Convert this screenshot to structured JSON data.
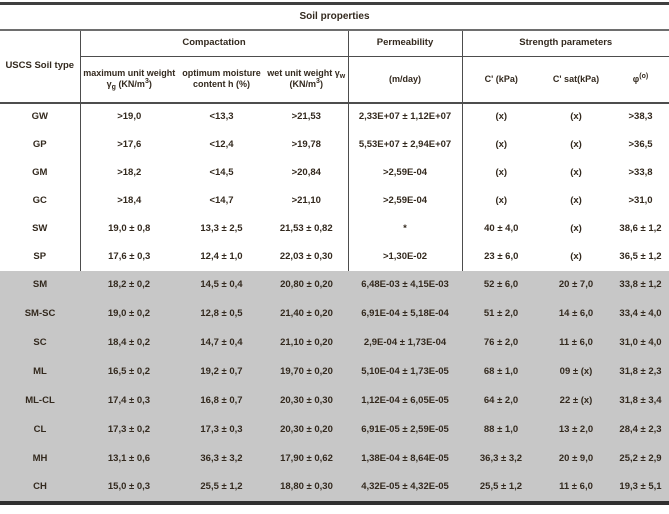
{
  "title": "Soil properties",
  "groups": {
    "compaction": "Compactation",
    "permeability": "Permeability",
    "strength": "Strength parameters"
  },
  "columns": {
    "soil_type": "USCS Soil type",
    "max_unit": {
      "pre": "maximum unit weight γ",
      "sub": "g",
      "mid": " (KN/m",
      "sup": "3",
      "post": ")"
    },
    "moisture": "optimum moisture content h (%)",
    "wet_unit": {
      "pre": "wet unit weight γ",
      "sub": "w",
      "mid": " (KN/m",
      "sup": "3",
      "post": ")"
    },
    "perm_unit": "(m/day)",
    "c": "C' (kPa)",
    "c_sat": "C' sat(kPa)",
    "phi": {
      "pre": "φ",
      "sup": "(o)"
    }
  },
  "colors": {
    "shaded_row_bg": "#c7c7c7",
    "rule": "#4d4d4d",
    "text": "#33291e"
  },
  "chart_data": {
    "type": "table",
    "title": "Soil properties",
    "column_groups": [
      "Compactation",
      "Permeability",
      "Strength parameters"
    ],
    "columns": [
      "USCS Soil type",
      "maximum unit weight γg (KN/m3)",
      "optimum moisture content h (%)",
      "wet unit weight γw (KN/m3)",
      "Permeability (m/day)",
      "C' (kPa)",
      "C' sat(kPa)",
      "φ (o)"
    ],
    "rows": [
      {
        "type": "GW",
        "max_unit": ">19,0",
        "moisture": "<13,3",
        "wet_unit": ">21,53",
        "permeability": "2,33E+07 ± 1,12E+07",
        "c": "(x)",
        "c_sat": "(x)",
        "phi": ">38,3",
        "shaded": false
      },
      {
        "type": "GP",
        "max_unit": ">17,6",
        "moisture": "<12,4",
        "wet_unit": ">19,78",
        "permeability": "5,53E+07 ± 2,94E+07",
        "c": "(x)",
        "c_sat": "(x)",
        "phi": ">36,5",
        "shaded": false
      },
      {
        "type": "GM",
        "max_unit": ">18,2",
        "moisture": "<14,5",
        "wet_unit": ">20,84",
        "permeability": ">2,59E-04",
        "c": "(x)",
        "c_sat": "(x)",
        "phi": ">33,8",
        "shaded": false
      },
      {
        "type": "GC",
        "max_unit": ">18,4",
        "moisture": "<14,7",
        "wet_unit": ">21,10",
        "permeability": ">2,59E-04",
        "c": "(x)",
        "c_sat": "(x)",
        "phi": ">31,0",
        "shaded": false
      },
      {
        "type": "SW",
        "max_unit": "19,0 ± 0,8",
        "moisture": "13,3 ± 2,5",
        "wet_unit": "21,53 ± 0,82",
        "permeability": "*",
        "c": "40 ± 4,0",
        "c_sat": "(x)",
        "phi": "38,6 ± 1,2",
        "shaded": false
      },
      {
        "type": "SP",
        "max_unit": "17,6 ± 0,3",
        "moisture": "12,4 ± 1,0",
        "wet_unit": "22,03 ± 0,30",
        "permeability": ">1,30E-02",
        "c": "23 ± 6,0",
        "c_sat": "(x)",
        "phi": "36,5 ± 1,2",
        "shaded": false
      },
      {
        "type": "SM",
        "max_unit": "18,2 ± 0,2",
        "moisture": "14,5 ± 0,4",
        "wet_unit": "20,80 ± 0,20",
        "permeability": "6,48E-03 ± 4,15E-03",
        "c": "52 ± 6,0",
        "c_sat": "20 ± 7,0",
        "phi": "33,8 ± 1,2",
        "shaded": true
      },
      {
        "type": "SM-SC",
        "max_unit": "19,0 ± 0,2",
        "moisture": "12,8 ± 0,5",
        "wet_unit": "21,40 ± 0,20",
        "permeability": "6,91E-04 ± 5,18E-04",
        "c": "51 ± 2,0",
        "c_sat": "14 ± 6,0",
        "phi": "33,4 ± 4,0",
        "shaded": true
      },
      {
        "type": "SC",
        "max_unit": "18,4 ± 0,2",
        "moisture": "14,7 ± 0,4",
        "wet_unit": "21,10 ± 0,20",
        "permeability": "2,9E-04 ± 1,73E-04",
        "c": "76 ± 2,0",
        "c_sat": "11 ± 6,0",
        "phi": "31,0 ± 4,0",
        "shaded": true
      },
      {
        "type": "ML",
        "max_unit": "16,5 ± 0,2",
        "moisture": "19,2 ± 0,7",
        "wet_unit": "19,70 ± 0,20",
        "permeability": "5,10E-04 ± 1,73E-05",
        "c": "68 ± 1,0",
        "c_sat": "09 ± (x)",
        "phi": "31,8 ± 2,3",
        "shaded": true
      },
      {
        "type": "ML-CL",
        "max_unit": "17,4 ± 0,3",
        "moisture": "16,8 ± 0,7",
        "wet_unit": "20,30 ± 0,30",
        "permeability": "1,12E-04 ± 6,05E-05",
        "c": "64 ± 2,0",
        "c_sat": "22 ± (x)",
        "phi": "31,8 ± 3,4",
        "shaded": true
      },
      {
        "type": "CL",
        "max_unit": "17,3 ± 0,2",
        "moisture": "17,3 ± 0,3",
        "wet_unit": "20,30 ± 0,20",
        "permeability": "6,91E-05 ± 2,59E-05",
        "c": "88 ± 1,0",
        "c_sat": "13 ± 2,0",
        "phi": "28,4 ± 2,3",
        "shaded": true
      },
      {
        "type": "MH",
        "max_unit": "13,1 ± 0,6",
        "moisture": "36,3 ± 3,2",
        "wet_unit": "17,90 ± 0,62",
        "permeability": "1,38E-04 ± 8,64E-05",
        "c": "36,3 ± 3,2",
        "c_sat": "20 ± 9,0",
        "phi": "25,2 ± 2,9",
        "shaded": true
      },
      {
        "type": "CH",
        "max_unit": "15,0 ± 0,3",
        "moisture": "25,5 ± 1,2",
        "wet_unit": "18,80 ± 0,30",
        "permeability": "4,32E-05 ± 4,32E-05",
        "c": "25,5 ± 1,2",
        "c_sat": "11 ± 6,0",
        "phi": "19,3 ± 5,1",
        "shaded": true
      }
    ]
  }
}
